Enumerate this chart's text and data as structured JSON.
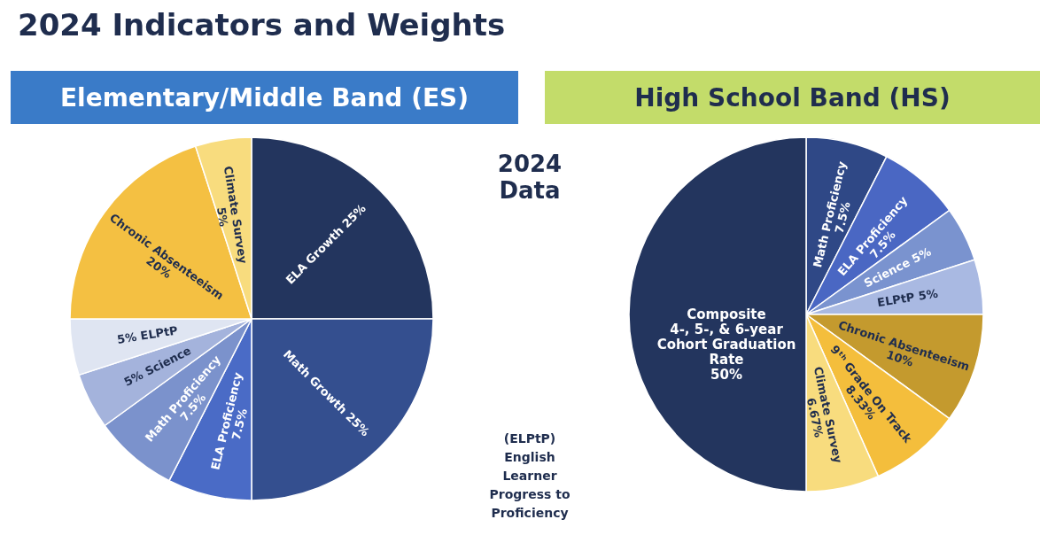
{
  "chart_data": [
    {
      "type": "pie",
      "title": "Elementary/Middle Band (ES)",
      "categories": [
        "ELA Growth 25%",
        "Math Growth 25%",
        "ELA Proficiency\n7.5%",
        "Math Proficiency\n7.5%",
        "5% Science",
        "5% ELPtP",
        "Chronic Absenteeism\n20%",
        "Climate Survey\n5%"
      ],
      "values": [
        25,
        25,
        7.5,
        7.5,
        5,
        5,
        20,
        5
      ],
      "colors": [
        "#23355e",
        "#344f8f",
        "#4a6bc6",
        "#7b92cc",
        "#a4b3dc",
        "#dfe5f2",
        "#f4c042",
        "#f8dc7e"
      ]
    },
    {
      "type": "other",
      "title": "2024 Indicators and Weights",
      "annotations": [
        "2024\nData",
        "(ELPtP)\nEnglish\nLearner\nProgress to\nProficiency"
      ]
    },
    {
      "type": "pie",
      "title": "High School Band (HS)",
      "categories": [
        "Math Proficiency\n7.5%",
        "ELA Proficiency\n7.5%",
        "Science 5%",
        "ELPtP 5%",
        "Chronic Absenteeism\n10%",
        "9ᵗʰ Grade On Track\n8.33%",
        "Climate Survey\n6.67%",
        "Composite\n4-, 5-, & 6-year\nCohort Graduation\nRate\n50%"
      ],
      "values": [
        7.5,
        7.5,
        5,
        5,
        10,
        8.33,
        6.67,
        50
      ],
      "colors": [
        "#2f4886",
        "#4a67c3",
        "#7a93cf",
        "#a9b9e2",
        "#c49a2e",
        "#f4be3c",
        "#f8dc7e",
        "#23355e"
      ]
    }
  ]
}
